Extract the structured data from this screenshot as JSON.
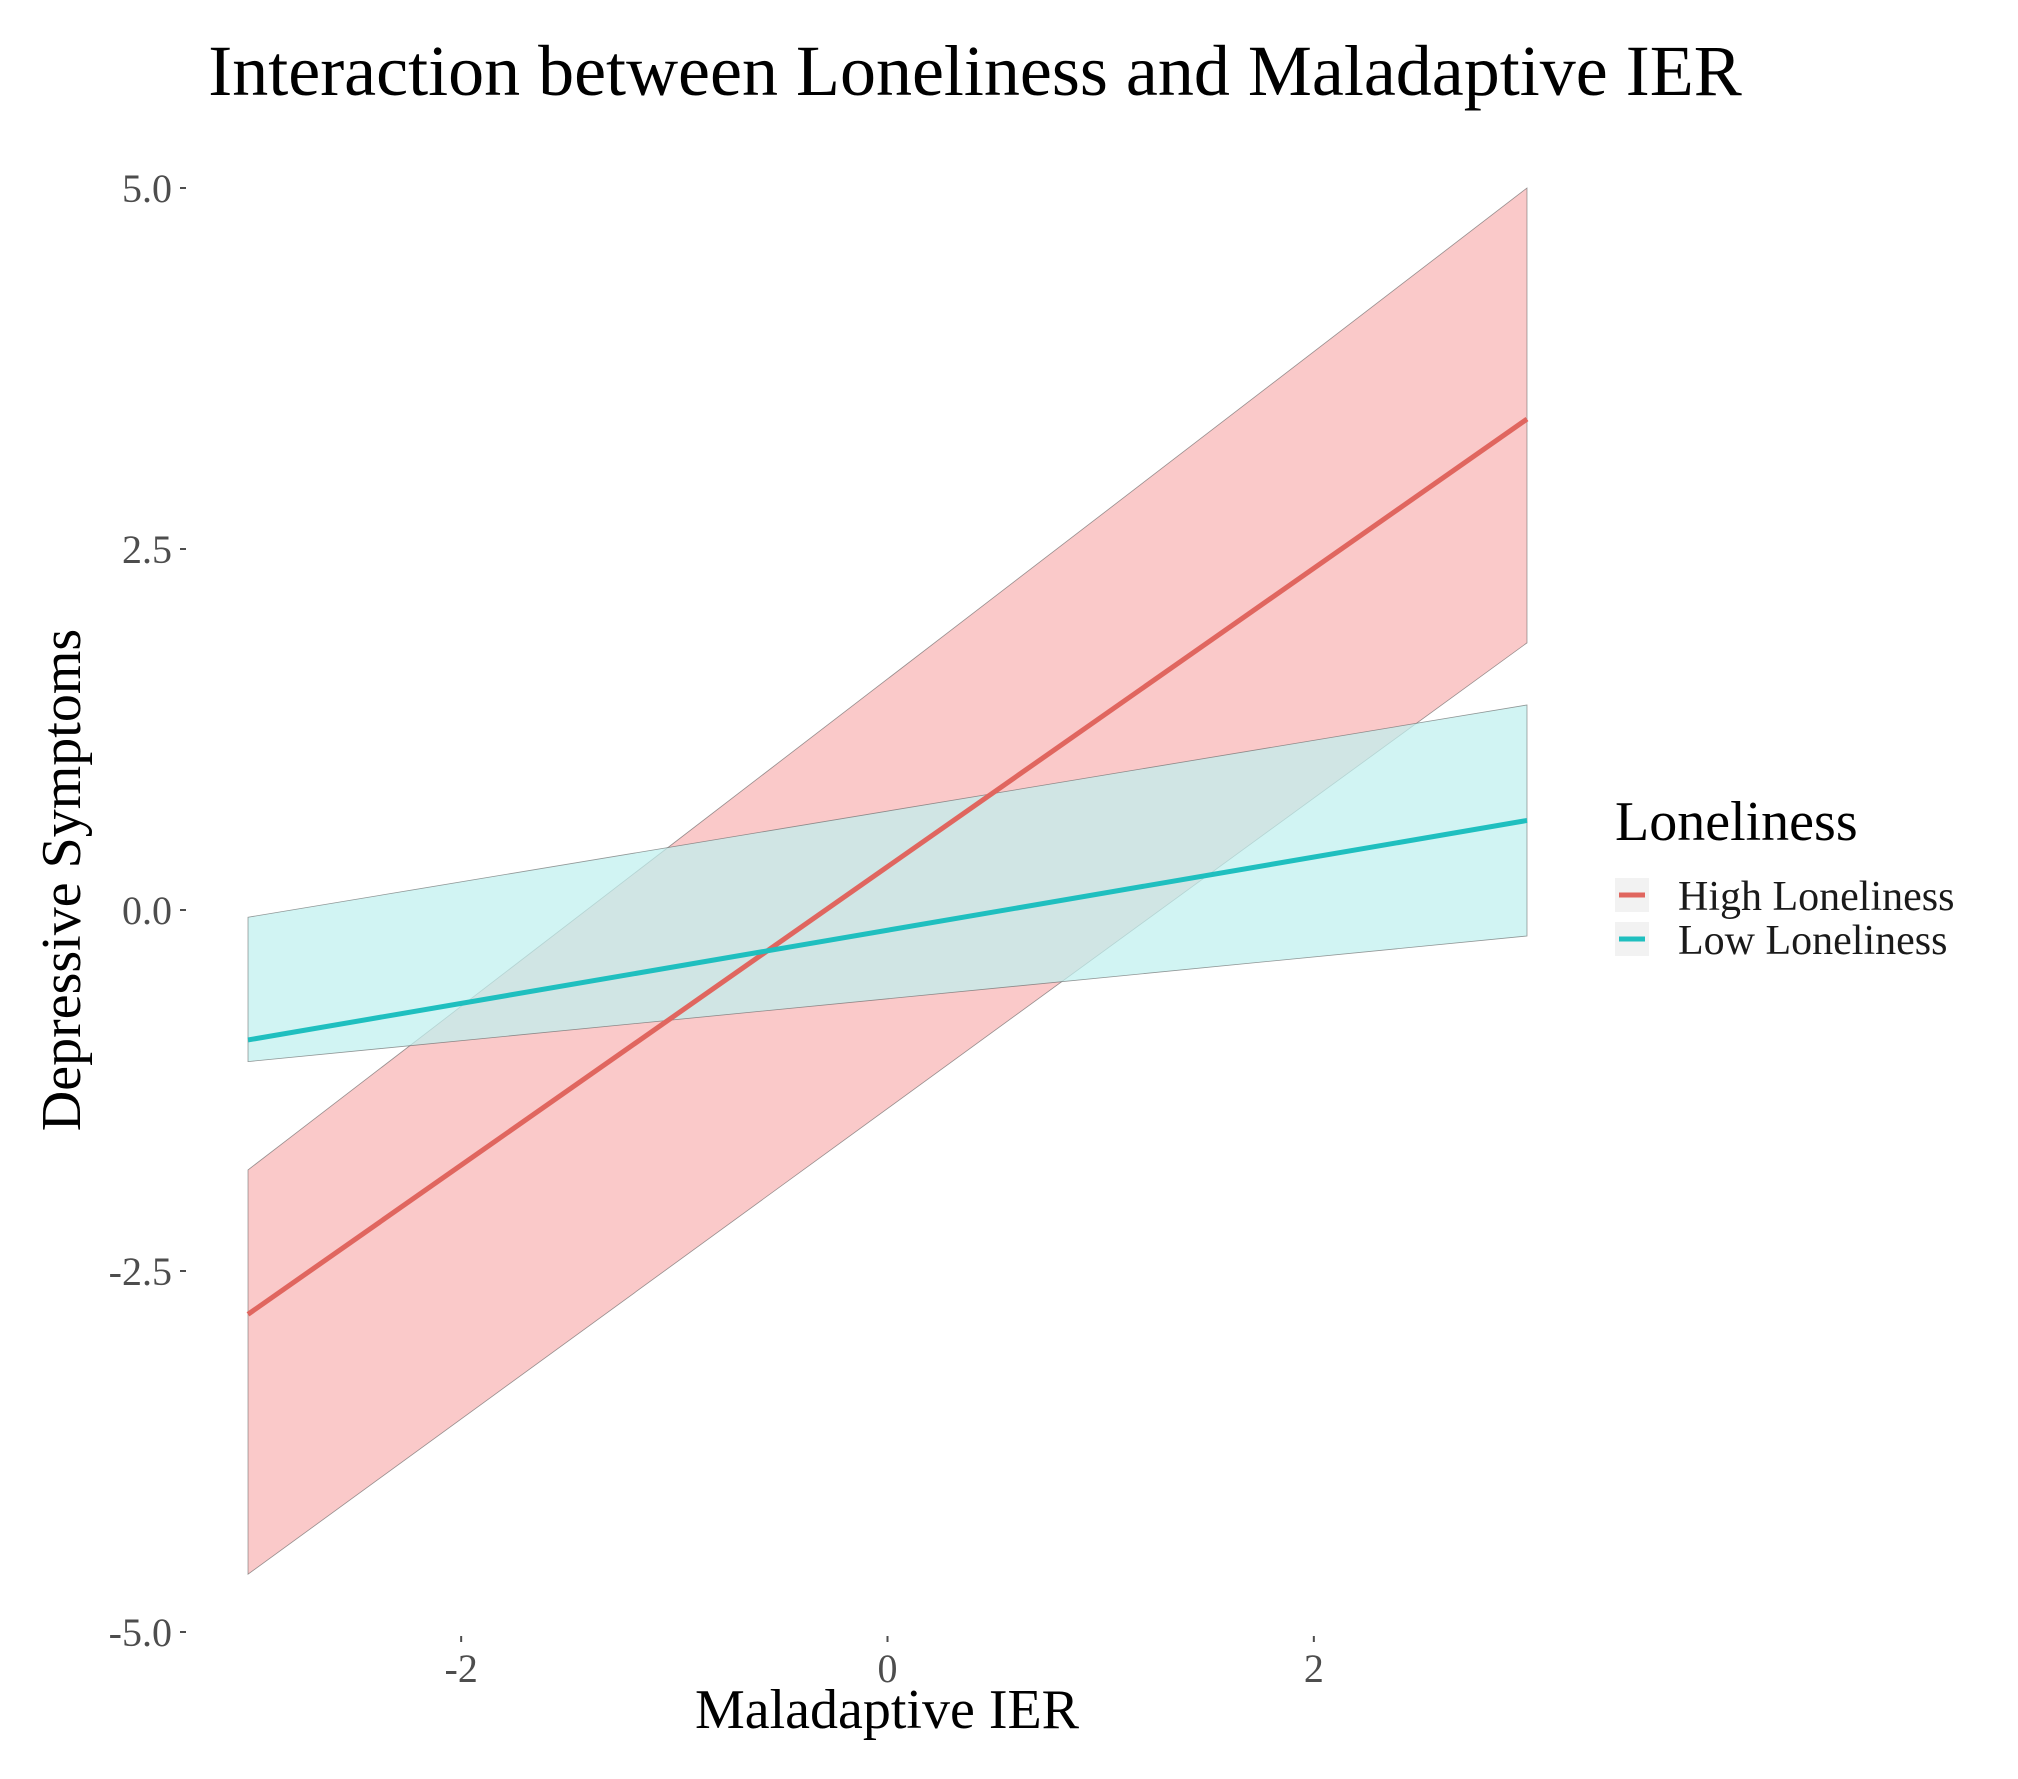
{
  "chart_data": {
    "type": "line",
    "title": "Interaction between Loneliness and Maladaptive IER",
    "xlabel": "Maladaptive IER",
    "ylabel": "Depressive Symptoms",
    "xlim": [
      -3,
      3
    ],
    "ylim": [
      -5,
      5
    ],
    "x_ticks": [
      {
        "value": -2,
        "label": "-2"
      },
      {
        "value": 0,
        "label": "0"
      },
      {
        "value": 2,
        "label": "2"
      }
    ],
    "y_ticks": [
      {
        "value": -5,
        "label": "-5.0"
      },
      {
        "value": -2.5,
        "label": "-2.5"
      },
      {
        "value": 0,
        "label": "0.0"
      },
      {
        "value": 2.5,
        "label": "2.5"
      },
      {
        "value": 5,
        "label": "5.0"
      }
    ],
    "grid": false,
    "legend": {
      "title": "Loneliness",
      "position": "right"
    },
    "series": [
      {
        "name": "High Loneliness",
        "color": "#e0665f",
        "band_color": "#f8b4b4",
        "x": [
          -3,
          3
        ],
        "y": [
          -2.8,
          3.4
        ],
        "upper": [
          -1.8,
          5.0
        ],
        "lower": [
          -4.6,
          1.85
        ]
      },
      {
        "name": "Low Loneliness",
        "color": "#1fbfbf",
        "band_color": "#bff0ee",
        "x": [
          -3,
          3
        ],
        "y": [
          -0.9,
          0.62
        ],
        "upper": [
          -0.05,
          1.42
        ],
        "lower": [
          -1.05,
          -0.18
        ]
      }
    ]
  }
}
